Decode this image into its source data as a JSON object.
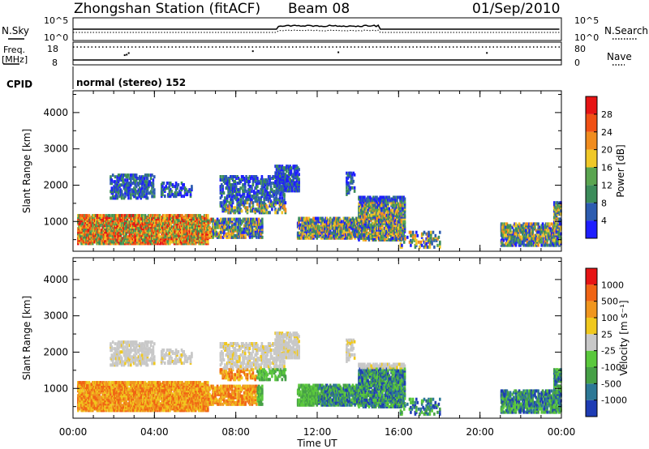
{
  "header": {
    "station": "Zhongshan Station (fitACF)",
    "beam": "Beam 08",
    "date": "01/Sep/2010"
  },
  "param_panels": {
    "nsky_label": "N.Sky",
    "nsky_ticks": [
      "10^5",
      "10^0"
    ],
    "nsearch_label": "N.Search",
    "nsearch_ticks": [
      "10^5",
      "10^0"
    ],
    "freq_label": "Freq.",
    "freq_unit": "[MHz]",
    "freq_ticks": [
      "18",
      "8"
    ],
    "nave_label": "Nave",
    "nave_ticks": [
      "80",
      "0"
    ],
    "cpid_label": "CPID",
    "cpid_text": "normal (stereo) 152"
  },
  "chart_data": [
    {
      "type": "heatmap",
      "panel": "power",
      "ylabel": "Slant Range [km]",
      "xlabel": "",
      "x_ticks": [
        "00:00",
        "04:00",
        "08:00",
        "12:00",
        "16:00",
        "20:00",
        "00:00"
      ],
      "y_ticks": [
        "1000",
        "2000",
        "3000",
        "4000"
      ],
      "ylim": [
        180,
        4600
      ],
      "xlim": [
        0,
        24
      ],
      "colorbar_label": "Power [dB]",
      "colorbar_ticks": [
        "4",
        "8",
        "12",
        "16",
        "20",
        "24",
        "28"
      ],
      "colorbar_colors": [
        "#1e1eff",
        "#2d5cb0",
        "#3c8c5a",
        "#5aa550",
        "#f0c828",
        "#f08c1e",
        "#f05014",
        "#e61414"
      ]
    },
    {
      "type": "heatmap",
      "panel": "velocity",
      "ylabel": "Slant Range [km]",
      "xlabel": "Time UT",
      "x_ticks": [
        "00:00",
        "04:00",
        "08:00",
        "12:00",
        "16:00",
        "20:00",
        "00:00"
      ],
      "y_ticks": [
        "1000",
        "2000",
        "3000",
        "4000"
      ],
      "ylim": [
        180,
        4600
      ],
      "xlim": [
        0,
        24
      ],
      "colorbar_label": "Velocity [m s⁻¹]",
      "colorbar_ticks": [
        "1000",
        "500",
        "100",
        "25",
        "-25",
        "-100",
        "-500",
        "-1000"
      ],
      "colorbar_colors": [
        "#1e3cb4",
        "#2d7896",
        "#46a046",
        "#5ac83c",
        "#c8c8c8",
        "#f0c81e",
        "#f0961e",
        "#f06414",
        "#e61414"
      ]
    }
  ]
}
